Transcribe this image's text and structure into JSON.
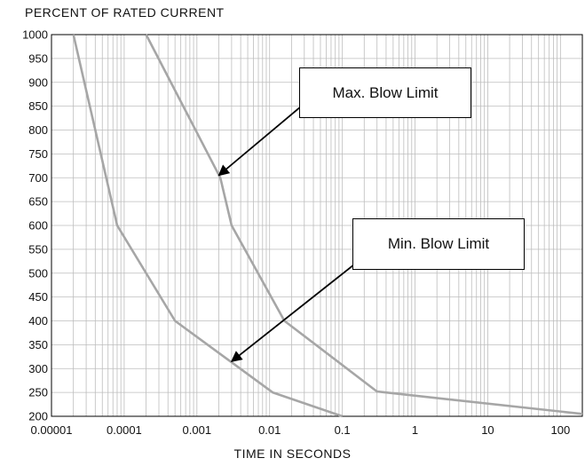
{
  "chart_data": {
    "type": "line",
    "ylabel": "PERCENT OF RATED CURRENT",
    "xlabel": "TIME IN SECONDS",
    "x_scale": "log",
    "xlim": [
      1e-05,
      200
    ],
    "ylim": [
      200,
      1000
    ],
    "x_ticks": [
      1e-05,
      0.0001,
      0.001,
      0.01,
      0.1,
      1,
      10,
      100
    ],
    "x_tick_labels": [
      "0.00001",
      "0.0001",
      "0.001",
      "0.01",
      "0.1",
      "1",
      "10",
      "100"
    ],
    "y_ticks": [
      200,
      250,
      300,
      350,
      400,
      450,
      500,
      550,
      600,
      650,
      700,
      750,
      800,
      850,
      900,
      950,
      1000
    ],
    "y_tick_labels": [
      "200",
      "250",
      "300",
      "350",
      "400",
      "450",
      "500",
      "550",
      "600",
      "650",
      "700",
      "750",
      "800",
      "850",
      "900",
      "950",
      "1000"
    ],
    "grid": true,
    "line_color": "#a6a6a6",
    "grid_color": "#bdbdbd",
    "series": [
      {
        "key": "min-blow",
        "points": [
          [
            2e-05,
            1000
          ],
          [
            8e-05,
            600
          ],
          [
            0.0005,
            400
          ],
          [
            0.011,
            250
          ],
          [
            0.1,
            200
          ]
        ]
      },
      {
        "key": "max-blow",
        "points": [
          [
            0.0002,
            1000
          ],
          [
            0.0021,
            700
          ],
          [
            0.003,
            600
          ],
          [
            0.016,
            400
          ],
          [
            0.3,
            252
          ],
          [
            200,
            205
          ]
        ]
      }
    ],
    "annotations": [
      {
        "text": "Max. Blow Limit",
        "arrow_to": [
          0.002,
          705
        ]
      },
      {
        "text": "Min. Blow Limit",
        "arrow_to": [
          0.003,
          315
        ]
      }
    ]
  }
}
